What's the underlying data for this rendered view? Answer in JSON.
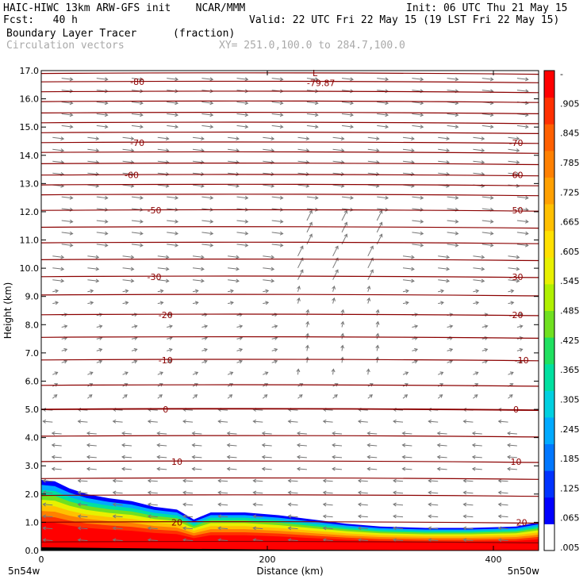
{
  "header": {
    "model_line": "HAIC-HIWC 13km ARW-GFS init    NCAR/MMM",
    "fcst_line": "Fcst:   40 h",
    "init_line": "Init: 06 UTC Thu 21 May 15",
    "valid_line": "Valid: 22 UTC Fri 22 May 15 (19 LST Fri 22 May 15)",
    "field_name": "Boundary Layer Tracer",
    "field_unit": "(fraction)",
    "vector_label": "Circulation vectors",
    "xsec_label": "XY= 251.0,100.0 to 284.7,100.0"
  },
  "axes": {
    "ylabel": "Height (km)",
    "xlabel": "Distance (km)",
    "left_endpoint": "5n54w",
    "right_endpoint": "5n50w"
  },
  "low_marker": {
    "letter": "L",
    "value": "-79.87"
  },
  "colors": {
    "contour": "#8b0000",
    "vector": "#777777",
    "colorbar": [
      "#ffffff",
      "#0000ff",
      "#0033ff",
      "#0077ff",
      "#00aaff",
      "#00d0e0",
      "#00e0a0",
      "#20e060",
      "#70e020",
      "#b0f000",
      "#e8f000",
      "#ffe000",
      "#ffc000",
      "#ffa000",
      "#ff8000",
      "#ff6000",
      "#ff3000",
      "#ff0000"
    ]
  },
  "chart_data": {
    "type": "contour",
    "x_ticks": [
      0,
      200,
      400
    ],
    "x_range": [
      0,
      440
    ],
    "y_ticks": [
      0.0,
      1.0,
      2.0,
      3.0,
      4.0,
      5.0,
      6.0,
      7.0,
      8.0,
      9.0,
      10.0,
      11.0,
      12.0,
      13.0,
      14.0,
      15.0,
      16.0,
      17.0
    ],
    "y_tick_labels": [
      "0.0",
      "1.0",
      "2.0",
      "3.0",
      "4.0",
      "5.0",
      "6.0",
      "7.0",
      "8.0",
      "9.0",
      "10.0",
      "11.0",
      "12.0",
      "13.0",
      "14.0",
      "15.0",
      "16.0",
      "17.0"
    ],
    "y_range": [
      0,
      17
    ],
    "colorbar_labels": [
      "-",
      ".905",
      ".845",
      ".785",
      ".725",
      ".665",
      ".605",
      ".545",
      ".485",
      ".425",
      ".365",
      ".305",
      ".245",
      ".185",
      ".125",
      ".065",
      ".005"
    ],
    "contour_labels": [
      {
        "text": "-80",
        "x": 85,
        "y": 16.6
      },
      {
        "text": "-70",
        "x": 85,
        "y": 14.45
      },
      {
        "text": "-70",
        "x": 420,
        "y": 14.45
      },
      {
        "text": "-60",
        "x": 80,
        "y": 13.3
      },
      {
        "text": "-60",
        "x": 420,
        "y": 13.3
      },
      {
        "text": "-50",
        "x": 100,
        "y": 12.05
      },
      {
        "text": "-50",
        "x": 420,
        "y": 12.05
      },
      {
        "text": "-30",
        "x": 100,
        "y": 9.7
      },
      {
        "text": "-30",
        "x": 420,
        "y": 9.7
      },
      {
        "text": "-20",
        "x": 110,
        "y": 8.35
      },
      {
        "text": "-20",
        "x": 420,
        "y": 8.35
      },
      {
        "text": "-10",
        "x": 110,
        "y": 6.75
      },
      {
        "text": "-10",
        "x": 425,
        "y": 6.75
      },
      {
        "text": "0",
        "x": 110,
        "y": 5.0
      },
      {
        "text": "0",
        "x": 420,
        "y": 5.0
      },
      {
        "text": "10",
        "x": 120,
        "y": 3.15
      },
      {
        "text": "10",
        "x": 420,
        "y": 3.15
      },
      {
        "text": "20",
        "x": 120,
        "y": 1.0
      },
      {
        "text": "20",
        "x": 425,
        "y": 1.0
      }
    ],
    "contour_heights": [
      16.9,
      16.6,
      16.25,
      15.9,
      15.5,
      15.15,
      14.8,
      14.45,
      14.1,
      13.7,
      13.3,
      12.95,
      12.6,
      12.05,
      11.45,
      10.9,
      10.3,
      9.7,
      9.05,
      8.35,
      7.55,
      6.75,
      5.85,
      5.0,
      4.05,
      3.15,
      2.55,
      1.95,
      1.0,
      0.3
    ],
    "tracer_top_profile": [
      {
        "x": 0,
        "y": 2.5
      },
      {
        "x": 12,
        "y": 2.45
      },
      {
        "x": 25,
        "y": 2.2
      },
      {
        "x": 40,
        "y": 2.0
      },
      {
        "x": 60,
        "y": 1.85
      },
      {
        "x": 80,
        "y": 1.75
      },
      {
        "x": 100,
        "y": 1.55
      },
      {
        "x": 120,
        "y": 1.45
      },
      {
        "x": 135,
        "y": 1.1
      },
      {
        "x": 150,
        "y": 1.35
      },
      {
        "x": 180,
        "y": 1.35
      },
      {
        "x": 210,
        "y": 1.25
      },
      {
        "x": 240,
        "y": 1.1
      },
      {
        "x": 270,
        "y": 0.95
      },
      {
        "x": 300,
        "y": 0.85
      },
      {
        "x": 340,
        "y": 0.8
      },
      {
        "x": 380,
        "y": 0.8
      },
      {
        "x": 420,
        "y": 0.85
      },
      {
        "x": 440,
        "y": 1.0
      }
    ]
  }
}
